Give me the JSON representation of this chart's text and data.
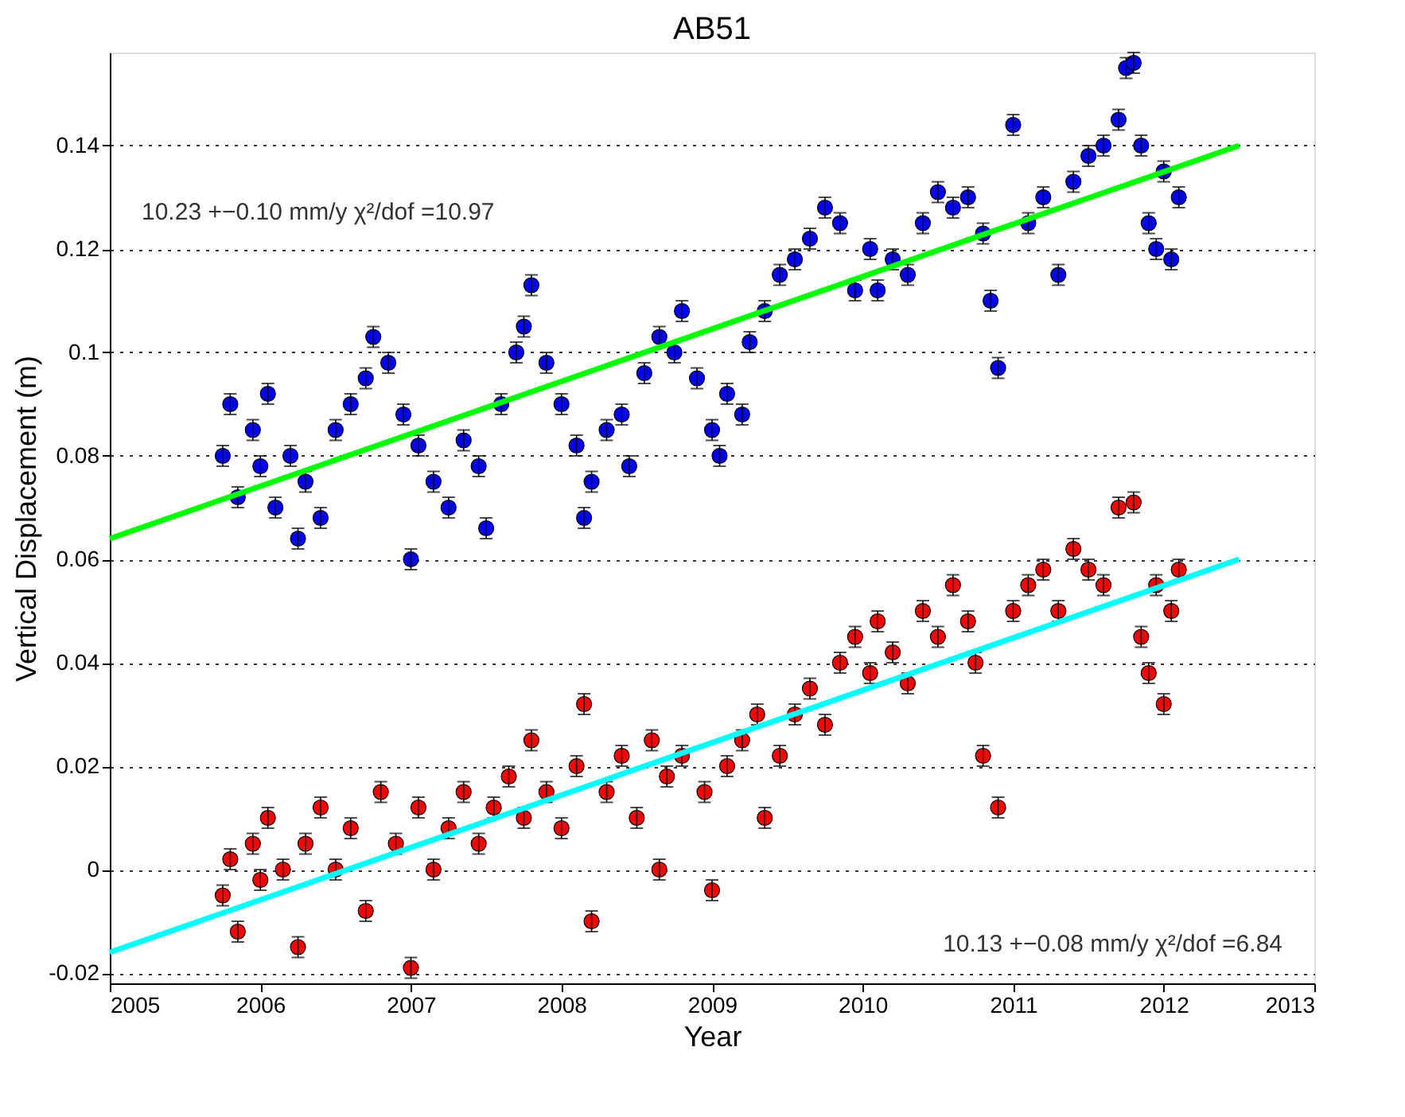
{
  "chart_data": {
    "type": "scatter",
    "title": "AB51",
    "xlabel": "Year",
    "ylabel": "Vertical Displacement (m)",
    "xlim": [
      2005,
      2013
    ],
    "xticks": [
      2005,
      2006,
      2007,
      2008,
      2009,
      2010,
      2011,
      2012,
      2013
    ],
    "ylim": [
      -0.022,
      0.158
    ],
    "yticks": [
      -0.02,
      0,
      0.02,
      0.04,
      0.06,
      0.08,
      0.1,
      0.12,
      0.14
    ],
    "grid": "y",
    "annotations": [
      "10.23 +−0.10 mm/y  χ²/dof =10.97",
      "10.13 +−0.08 mm/y  χ²/dof =6.84"
    ],
    "series": [
      {
        "marker": "circle",
        "color": "#0000ff",
        "x": [
          2005.75,
          2005.8,
          2005.85,
          2005.95,
          2006.0,
          2006.05,
          2006.1,
          2006.2,
          2006.25,
          2006.3,
          2006.4,
          2006.5,
          2006.6,
          2006.7,
          2006.75,
          2006.85,
          2006.95,
          2007.0,
          2007.05,
          2007.15,
          2007.25,
          2007.35,
          2007.45,
          2007.5,
          2007.6,
          2007.7,
          2007.75,
          2007.8,
          2007.9,
          2008.0,
          2008.1,
          2008.15,
          2008.2,
          2008.3,
          2008.4,
          2008.45,
          2008.55,
          2008.65,
          2008.75,
          2008.8,
          2008.9,
          2009.0,
          2009.05,
          2009.1,
          2009.2,
          2009.25,
          2009.35,
          2009.45,
          2009.55,
          2009.65,
          2009.75,
          2009.85,
          2009.95,
          2010.05,
          2010.1,
          2010.2,
          2010.3,
          2010.4,
          2010.5,
          2010.6,
          2010.7,
          2010.8,
          2010.85,
          2010.9,
          2011.0,
          2011.1,
          2011.2,
          2011.3,
          2011.4,
          2011.5,
          2011.6,
          2011.7,
          2011.75,
          2011.8,
          2011.85,
          2011.9,
          2011.95,
          2012.0,
          2012.05,
          2012.1
        ],
        "values": [
          0.08,
          0.09,
          0.072,
          0.085,
          0.078,
          0.092,
          0.07,
          0.08,
          0.064,
          0.075,
          0.068,
          0.085,
          0.09,
          0.095,
          0.103,
          0.098,
          0.088,
          0.06,
          0.082,
          0.075,
          0.07,
          0.083,
          0.078,
          0.066,
          0.09,
          0.1,
          0.105,
          0.113,
          0.098,
          0.09,
          0.082,
          0.068,
          0.075,
          0.085,
          0.088,
          0.078,
          0.096,
          0.103,
          0.1,
          0.108,
          0.095,
          0.085,
          0.08,
          0.092,
          0.088,
          0.102,
          0.108,
          0.115,
          0.118,
          0.122,
          0.128,
          0.125,
          0.112,
          0.12,
          0.112,
          0.118,
          0.115,
          0.125,
          0.131,
          0.128,
          0.13,
          0.123,
          0.11,
          0.097,
          0.144,
          0.125,
          0.13,
          0.115,
          0.133,
          0.138,
          0.14,
          0.145,
          0.155,
          0.156,
          0.14,
          0.125,
          0.12,
          0.135,
          0.118,
          0.13
        ],
        "errors": [
          0.002,
          0.002,
          0.002,
          0.002,
          0.002,
          0.002,
          0.002,
          0.002,
          0.002,
          0.002,
          0.002,
          0.002,
          0.002,
          0.002,
          0.002,
          0.002,
          0.002,
          0.002,
          0.002,
          0.002,
          0.002,
          0.002,
          0.002,
          0.002,
          0.002,
          0.002,
          0.002,
          0.002,
          0.002,
          0.002,
          0.002,
          0.002,
          0.002,
          0.002,
          0.002,
          0.002,
          0.002,
          0.002,
          0.002,
          0.002,
          0.002,
          0.002,
          0.002,
          0.002,
          0.002,
          0.002,
          0.002,
          0.002,
          0.002,
          0.002,
          0.002,
          0.002,
          0.002,
          0.002,
          0.002,
          0.002,
          0.002,
          0.002,
          0.002,
          0.002,
          0.002,
          0.002,
          0.002,
          0.002,
          0.002,
          0.002,
          0.002,
          0.002,
          0.002,
          0.002,
          0.002,
          0.002,
          0.002,
          0.002,
          0.002,
          0.002,
          0.002,
          0.002,
          0.002,
          0.002
        ]
      },
      {
        "marker": "circle",
        "color": "#ff0000",
        "x": [
          2005.75,
          2005.8,
          2005.85,
          2005.95,
          2006.0,
          2006.05,
          2006.15,
          2006.25,
          2006.3,
          2006.4,
          2006.5,
          2006.6,
          2006.7,
          2006.8,
          2006.9,
          2007.0,
          2007.05,
          2007.15,
          2007.25,
          2007.35,
          2007.45,
          2007.55,
          2007.65,
          2007.75,
          2007.8,
          2007.9,
          2008.0,
          2008.1,
          2008.15,
          2008.2,
          2008.3,
          2008.4,
          2008.5,
          2008.6,
          2008.65,
          2008.7,
          2008.8,
          2008.95,
          2009.0,
          2009.1,
          2009.2,
          2009.3,
          2009.35,
          2009.45,
          2009.55,
          2009.65,
          2009.75,
          2009.85,
          2009.95,
          2010.05,
          2010.1,
          2010.2,
          2010.3,
          2010.4,
          2010.5,
          2010.6,
          2010.7,
          2010.75,
          2010.8,
          2010.9,
          2011.0,
          2011.1,
          2011.2,
          2011.3,
          2011.4,
          2011.5,
          2011.6,
          2011.7,
          2011.8,
          2011.85,
          2011.9,
          2011.95,
          2012.0,
          2012.05,
          2012.1
        ],
        "values": [
          -0.005,
          0.002,
          -0.012,
          0.005,
          -0.002,
          0.01,
          0.0,
          -0.015,
          0.005,
          0.012,
          0.0,
          0.008,
          -0.008,
          0.015,
          0.005,
          -0.019,
          0.012,
          0.0,
          0.008,
          0.015,
          0.005,
          0.012,
          0.018,
          0.01,
          0.025,
          0.015,
          0.008,
          0.02,
          0.032,
          -0.01,
          0.015,
          0.022,
          0.01,
          0.025,
          0.0,
          0.018,
          0.022,
          0.015,
          -0.004,
          0.02,
          0.025,
          0.03,
          0.01,
          0.022,
          0.03,
          0.035,
          0.028,
          0.04,
          0.045,
          0.038,
          0.048,
          0.042,
          0.036,
          0.05,
          0.045,
          0.055,
          0.048,
          0.04,
          0.022,
          0.012,
          0.05,
          0.055,
          0.058,
          0.05,
          0.062,
          0.058,
          0.055,
          0.07,
          0.071,
          0.045,
          0.038,
          0.055,
          0.032,
          0.05,
          0.058
        ],
        "errors": [
          0.002,
          0.002,
          0.002,
          0.002,
          0.002,
          0.002,
          0.002,
          0.002,
          0.002,
          0.002,
          0.002,
          0.002,
          0.002,
          0.002,
          0.002,
          0.002,
          0.002,
          0.002,
          0.002,
          0.002,
          0.002,
          0.002,
          0.002,
          0.002,
          0.002,
          0.002,
          0.002,
          0.002,
          0.002,
          0.002,
          0.002,
          0.002,
          0.002,
          0.002,
          0.002,
          0.002,
          0.002,
          0.002,
          0.002,
          0.002,
          0.002,
          0.002,
          0.002,
          0.002,
          0.002,
          0.002,
          0.002,
          0.002,
          0.002,
          0.002,
          0.002,
          0.002,
          0.002,
          0.002,
          0.002,
          0.002,
          0.002,
          0.002,
          0.002,
          0.002,
          0.002,
          0.002,
          0.002,
          0.002,
          0.002,
          0.002,
          0.002,
          0.002,
          0.002,
          0.002,
          0.002,
          0.002,
          0.002,
          0.002,
          0.002
        ]
      },
      {
        "type": "line",
        "color": "#00ff00",
        "line_style": "solid",
        "x": [
          2005,
          2012.5
        ],
        "values": [
          0.064,
          0.14
        ]
      },
      {
        "type": "line",
        "color": "#00ffff",
        "line_style": "solid",
        "x": [
          2005,
          2012.5
        ],
        "values": [
          -0.016,
          0.06
        ]
      }
    ]
  }
}
